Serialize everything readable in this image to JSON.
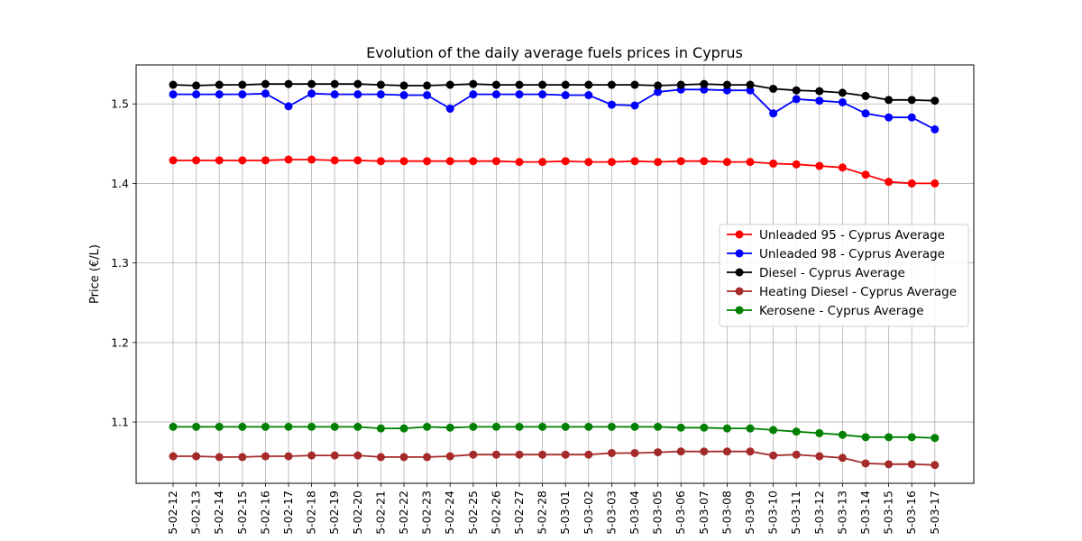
{
  "chart_data": {
    "type": "line",
    "title": "Evolution of the daily average fuels prices in Cyprus",
    "xlabel": "",
    "ylabel": "Price (€/L)",
    "x": [
      "5-02-12",
      "5-02-13",
      "5-02-14",
      "5-02-15",
      "5-02-16",
      "5-02-17",
      "5-02-18",
      "5-02-19",
      "5-02-20",
      "5-02-21",
      "5-02-22",
      "5-02-23",
      "5-02-24",
      "5-02-25",
      "5-02-26",
      "5-02-27",
      "5-02-28",
      "5-03-01",
      "5-03-02",
      "5-03-03",
      "5-03-04",
      "5-03-05",
      "5-03-06",
      "5-03-07",
      "5-03-08",
      "5-03-09",
      "5-03-10",
      "5-03-11",
      "5-03-12",
      "5-03-13",
      "5-03-14",
      "5-03-15",
      "5-03-16",
      "5-03-17"
    ],
    "ylim": [
      1.023,
      1.549
    ],
    "yticks": [
      1.1,
      1.2,
      1.3,
      1.4,
      1.5
    ],
    "grid": true,
    "legend_position": "center-right",
    "series": [
      {
        "name": "Unleaded 95 - Cyprus Average",
        "color": "#ff0000",
        "values": [
          1.429,
          1.429,
          1.429,
          1.429,
          1.429,
          1.43,
          1.43,
          1.429,
          1.429,
          1.428,
          1.428,
          1.428,
          1.428,
          1.428,
          1.428,
          1.427,
          1.427,
          1.428,
          1.427,
          1.427,
          1.428,
          1.427,
          1.428,
          1.428,
          1.427,
          1.427,
          1.425,
          1.424,
          1.422,
          1.42,
          1.411,
          1.402,
          1.4,
          1.4
        ]
      },
      {
        "name": "Unleaded 98 - Cyprus Average",
        "color": "#0000ff",
        "values": [
          1.512,
          1.512,
          1.512,
          1.512,
          1.513,
          1.497,
          1.513,
          1.512,
          1.512,
          1.512,
          1.511,
          1.511,
          1.494,
          1.512,
          1.512,
          1.512,
          1.512,
          1.511,
          1.511,
          1.499,
          1.498,
          1.515,
          1.518,
          1.518,
          1.517,
          1.517,
          1.488,
          1.506,
          1.504,
          1.502,
          1.488,
          1.483,
          1.483,
          1.468
        ]
      },
      {
        "name": "Diesel - Cyprus Average",
        "color": "#000000",
        "values": [
          1.524,
          1.523,
          1.524,
          1.524,
          1.525,
          1.525,
          1.525,
          1.525,
          1.525,
          1.524,
          1.523,
          1.523,
          1.524,
          1.525,
          1.524,
          1.524,
          1.524,
          1.524,
          1.524,
          1.524,
          1.524,
          1.523,
          1.524,
          1.525,
          1.524,
          1.524,
          1.519,
          1.517,
          1.516,
          1.514,
          1.51,
          1.505,
          1.505,
          1.504
        ]
      },
      {
        "name": "Heating Diesel - Cyprus Average",
        "color": "#a52a2a",
        "values": [
          1.057,
          1.057,
          1.056,
          1.056,
          1.057,
          1.057,
          1.058,
          1.058,
          1.058,
          1.056,
          1.056,
          1.056,
          1.057,
          1.059,
          1.059,
          1.059,
          1.059,
          1.059,
          1.059,
          1.061,
          1.061,
          1.062,
          1.063,
          1.063,
          1.063,
          1.063,
          1.058,
          1.059,
          1.057,
          1.055,
          1.048,
          1.047,
          1.047,
          1.046
        ]
      },
      {
        "name": "Kerosene - Cyprus Average",
        "color": "#008000",
        "values": [
          1.094,
          1.094,
          1.094,
          1.094,
          1.094,
          1.094,
          1.094,
          1.094,
          1.094,
          1.092,
          1.092,
          1.094,
          1.093,
          1.094,
          1.094,
          1.094,
          1.094,
          1.094,
          1.094,
          1.094,
          1.094,
          1.094,
          1.093,
          1.093,
          1.092,
          1.092,
          1.09,
          1.088,
          1.086,
          1.084,
          1.081,
          1.081,
          1.081,
          1.08
        ]
      }
    ]
  }
}
